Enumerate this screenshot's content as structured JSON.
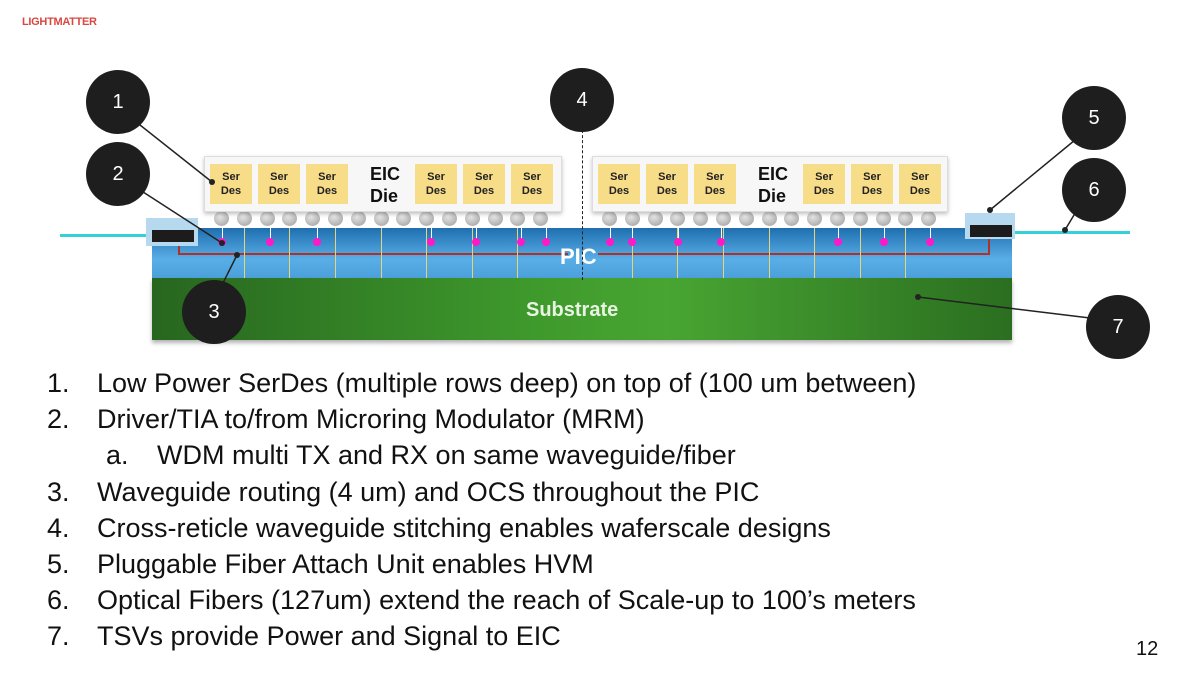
{
  "logo": "LIGHTMATTER",
  "page_number": "12",
  "diagram": {
    "pic_label": "PIC",
    "substrate_label": "Substrate",
    "eic_label_line1": "EIC",
    "eic_label_line2": "Die",
    "serdes_line1": "Ser",
    "serdes_line2": "Des",
    "callouts": [
      "1",
      "2",
      "3",
      "4",
      "5",
      "6",
      "7"
    ],
    "colors": {
      "pic": "#3a8fd0",
      "substrate": "#3f9a2c",
      "serdes": "#f8dd88",
      "fiber": "#35d0d8",
      "mrm": "#ff18c8",
      "waveguide": "#b0302a",
      "logo": "#d9473f"
    }
  },
  "list": [
    {
      "num": "1.",
      "text": "Low Power SerDes (multiple rows deep) on top of (100 um between)"
    },
    {
      "num": "2.",
      "text": "Driver/TIA to/from Microring Modulator (MRM)"
    },
    {
      "num": "a.",
      "text": "WDM multi TX and RX on same waveguide/fiber",
      "sub": true
    },
    {
      "num": "3.",
      "text": "Waveguide routing (4 um) and OCS throughout the PIC"
    },
    {
      "num": "4.",
      "text": "Cross-reticle waveguide stitching enables waferscale designs"
    },
    {
      "num": "5.",
      "text": "Pluggable Fiber Attach Unit enables HVM"
    },
    {
      "num": "6.",
      "text": "Optical Fibers (127um) extend the reach of Scale-up to 100’s meters"
    },
    {
      "num": "7.",
      "text": "TSVs provide Power and Signal to EIC"
    }
  ]
}
